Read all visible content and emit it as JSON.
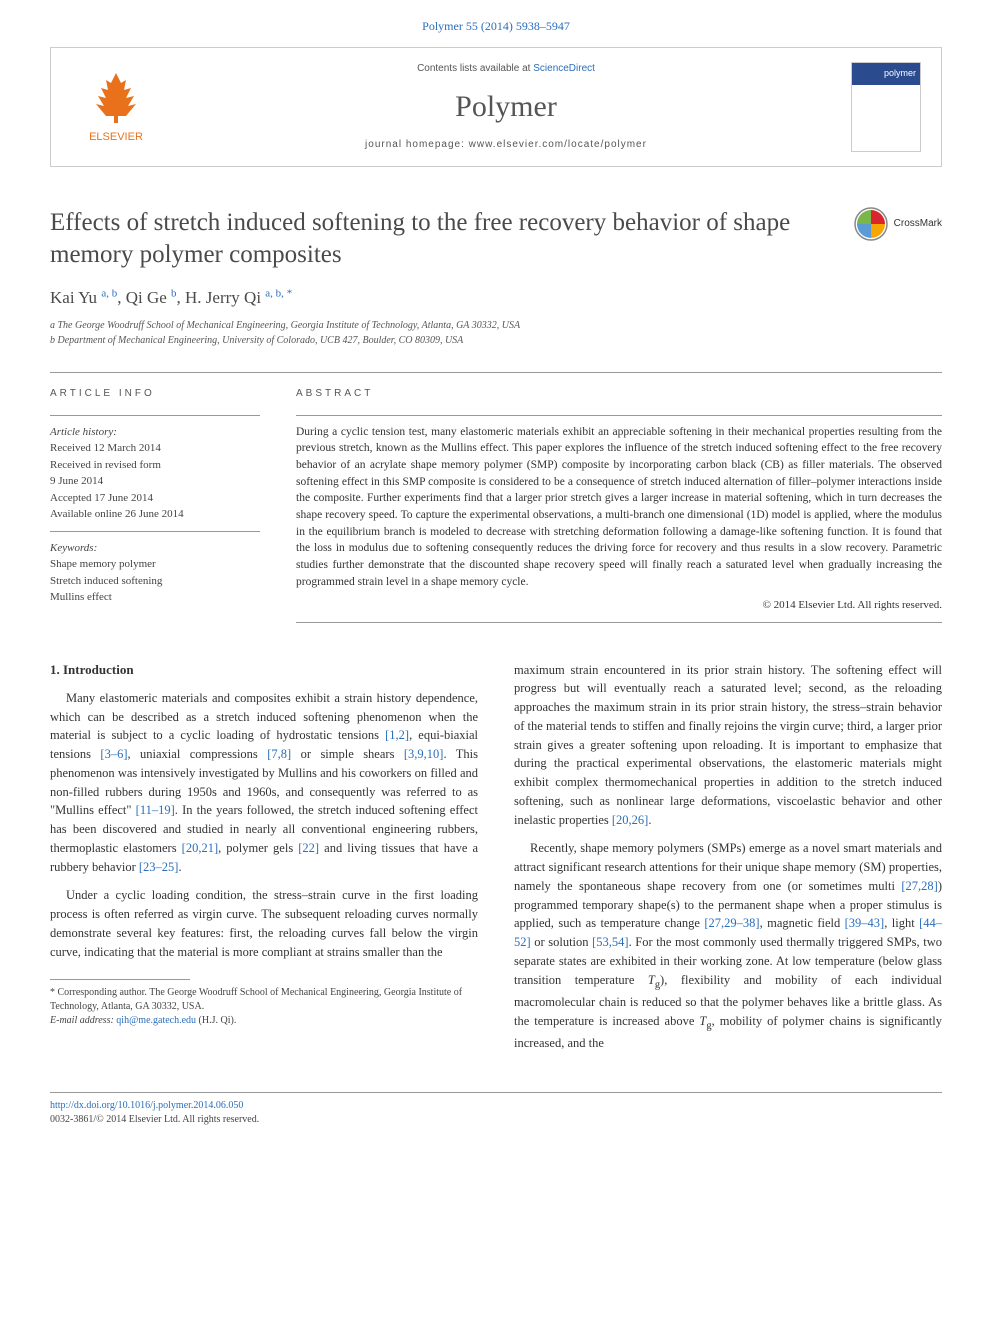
{
  "citation": "Polymer 55 (2014) 5938–5947",
  "header": {
    "contents_prefix": "Contents lists available at ",
    "contents_link": "ScienceDirect",
    "journal_name": "Polymer",
    "homepage_prefix": "journal homepage: ",
    "homepage_url": "www.elsevier.com/locate/polymer",
    "publisher": "ELSEVIER"
  },
  "title": "Effects of stretch induced softening to the free recovery behavior of shape memory polymer composites",
  "crossmark": "CrossMark",
  "authors_html": "Kai Yu <sup>a, b</sup>, Qi Ge <sup>b</sup>, H. Jerry Qi <sup>a, b, <span class='corr'>*</span></sup>",
  "affiliations": {
    "a": "a The George Woodruff School of Mechanical Engineering, Georgia Institute of Technology, Atlanta, GA 30332, USA",
    "b": "b Department of Mechanical Engineering, University of Colorado, UCB 427, Boulder, CO 80309, USA"
  },
  "article_info": {
    "label": "ARTICLE INFO",
    "history_heading": "Article history:",
    "received": "Received 12 March 2014",
    "revised1": "Received in revised form",
    "revised2": "9 June 2014",
    "accepted": "Accepted 17 June 2014",
    "online": "Available online 26 June 2014",
    "keywords_heading": "Keywords:",
    "kw1": "Shape memory polymer",
    "kw2": "Stretch induced softening",
    "kw3": "Mullins effect"
  },
  "abstract": {
    "label": "ABSTRACT",
    "text": "During a cyclic tension test, many elastomeric materials exhibit an appreciable softening in their mechanical properties resulting from the previous stretch, known as the Mullins effect. This paper explores the influence of the stretch induced softening effect to the free recovery behavior of an acrylate shape memory polymer (SMP) composite by incorporating carbon black (CB) as filler materials. The observed softening effect in this SMP composite is considered to be a consequence of stretch induced alternation of filler–polymer interactions inside the composite. Further experiments find that a larger prior stretch gives a larger increase in material softening, which in turn decreases the shape recovery speed. To capture the experimental observations, a multi-branch one dimensional (1D) model is applied, where the modulus in the equilibrium branch is modeled to decrease with stretching deformation following a damage-like softening function. It is found that the loss in modulus due to softening consequently reduces the driving force for recovery and thus results in a slow recovery. Parametric studies further demonstrate that the discounted shape recovery speed will finally reach a saturated level when gradually increasing the programmed strain level in a shape memory cycle.",
    "copyright": "© 2014 Elsevier Ltd. All rights reserved."
  },
  "body": {
    "intro_heading": "1. Introduction",
    "p1": "Many elastomeric materials and composites exhibit a strain history dependence, which can be described as a stretch induced softening phenomenon when the material is subject to a cyclic loading of hydrostatic tensions [1,2], equi-biaxial tensions [3–6], uniaxial compressions [7,8] or simple shears [3,9,10]. This phenomenon was intensively investigated by Mullins and his coworkers on filled and non-filled rubbers during 1950s and 1960s, and consequently was referred to as \"Mullins effect\" [11–19]. In the years followed, the stretch induced softening effect has been discovered and studied in nearly all conventional engineering rubbers, thermoplastic elastomers [20,21], polymer gels [22] and living tissues that have a rubbery behavior [23–25].",
    "p2": "Under a cyclic loading condition, the stress–strain curve in the first loading process is often referred as virgin curve. The subsequent reloading curves normally demonstrate several key features: first, the reloading curves fall below the virgin curve, indicating that the material is more compliant at strains smaller than the",
    "p3": "maximum strain encountered in its prior strain history. The softening effect will progress but will eventually reach a saturated level; second, as the reloading approaches the maximum strain in its prior strain history, the stress–strain behavior of the material tends to stiffen and finally rejoins the virgin curve; third, a larger prior strain gives a greater softening upon reloading. It is important to emphasize that during the practical experimental observations, the elastomeric materials might exhibit complex thermomechanical properties in addition to the stretch induced softening, such as nonlinear large deformations, viscoelastic behavior and other inelastic properties [20,26].",
    "p4": "Recently, shape memory polymers (SMPs) emerge as a novel smart materials and attract significant research attentions for their unique shape memory (SM) properties, namely the spontaneous shape recovery from one (or sometimes multi [27,28]) programmed temporary shape(s) to the permanent shape when a proper stimulus is applied, such as temperature change [27,29–38], magnetic field [39–43], light [44–52] or solution [53,54]. For the most commonly used thermally triggered SMPs, two separate states are exhibited in their working zone. At low temperature (below glass transition temperature Tg), flexibility and mobility of each individual macromolecular chain is reduced so that the polymer behaves like a brittle glass. As the temperature is increased above Tg, mobility of polymer chains is significantly increased, and the"
  },
  "footnote": {
    "corr": "* Corresponding author. The George Woodruff School of Mechanical Engineering, Georgia Institute of Technology, Atlanta, GA 30332, USA.",
    "email_label": "E-mail address: ",
    "email": "qih@me.gatech.edu",
    "email_suffix": " (H.J. Qi)."
  },
  "footer": {
    "doi": "http://dx.doi.org/10.1016/j.polymer.2014.06.050",
    "issn": "0032-3861/© 2014 Elsevier Ltd. All rights reserved."
  },
  "colors": {
    "link": "#2a6ebb",
    "elsevier": "#e9711c",
    "text": "#333333",
    "muted": "#555555"
  }
}
